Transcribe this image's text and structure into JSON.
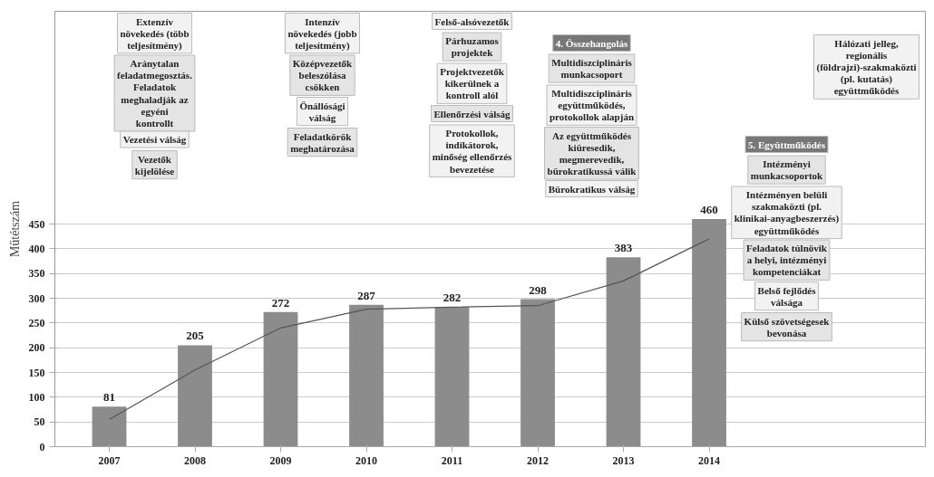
{
  "chart_data": {
    "type": "bar",
    "ylabel": "Műtétszám",
    "categories": [
      "2007",
      "2008",
      "2009",
      "2010",
      "2011",
      "2012",
      "2013",
      "2014"
    ],
    "series": [
      {
        "color": "#8c8c8c",
        "values": [
          81,
          205,
          272,
          287,
          282,
          298,
          383,
          460
        ],
        "value_labels": [
          "81",
          "205",
          "272",
          "287",
          "282",
          "298",
          "383",
          "460"
        ]
      },
      {
        "type": "line",
        "color": "#555555",
        "values": [
          55,
          155,
          240,
          278,
          282,
          285,
          335,
          420
        ]
      }
    ],
    "ylim": [
      0,
      880
    ],
    "yticks": [
      0,
      50,
      100,
      150,
      200,
      250,
      300,
      350,
      400,
      450
    ],
    "grid": "y",
    "annotations": [
      "Extenzív növekedés (több teljesítmény)",
      "Aránytalan feladatmegosztás. Feladatok meghaladják az egyéni kontrollt",
      "Vezetési válság",
      "Vezetők kijelölése",
      "Intenzív növekedés (jobb teljesítmény)",
      "Középvezetők beleszólása csökken",
      "Önállósági válság",
      "Feladatkörök meghatározása",
      "Felső-alsóvezetők",
      "Párhuzamos projektek",
      "Projektvezetők kikerülnek a kontroll alól",
      "Ellenőrzési válság",
      "Protokollok, indikátorok, minőség ellenőrzés bevezetése",
      "4. Összehangolás",
      "Multidiszciplináris munkacsoport",
      "Multidiszciplináris együttműködés, protokollok alapján",
      "Az együttműködés kiüresedik, megmerevedik, bürokratikussá válik",
      "Bürokratikus válság",
      "Hálózati jelleg, regionális (földrajzi)-szakmaközti (pl. kutatás) együttműködés",
      "5. Együttműködés",
      "Intézményi munkacsoportok",
      "Intézményen belüli szakmaközti (pl. klinikai-anyagbeszerzés) együttműködés",
      "Feladatok túlnövik a helyi, intézményi kompetenciákat",
      "Belső fejlődés válsága",
      "Külső szövetségesek bevonása"
    ]
  }
}
